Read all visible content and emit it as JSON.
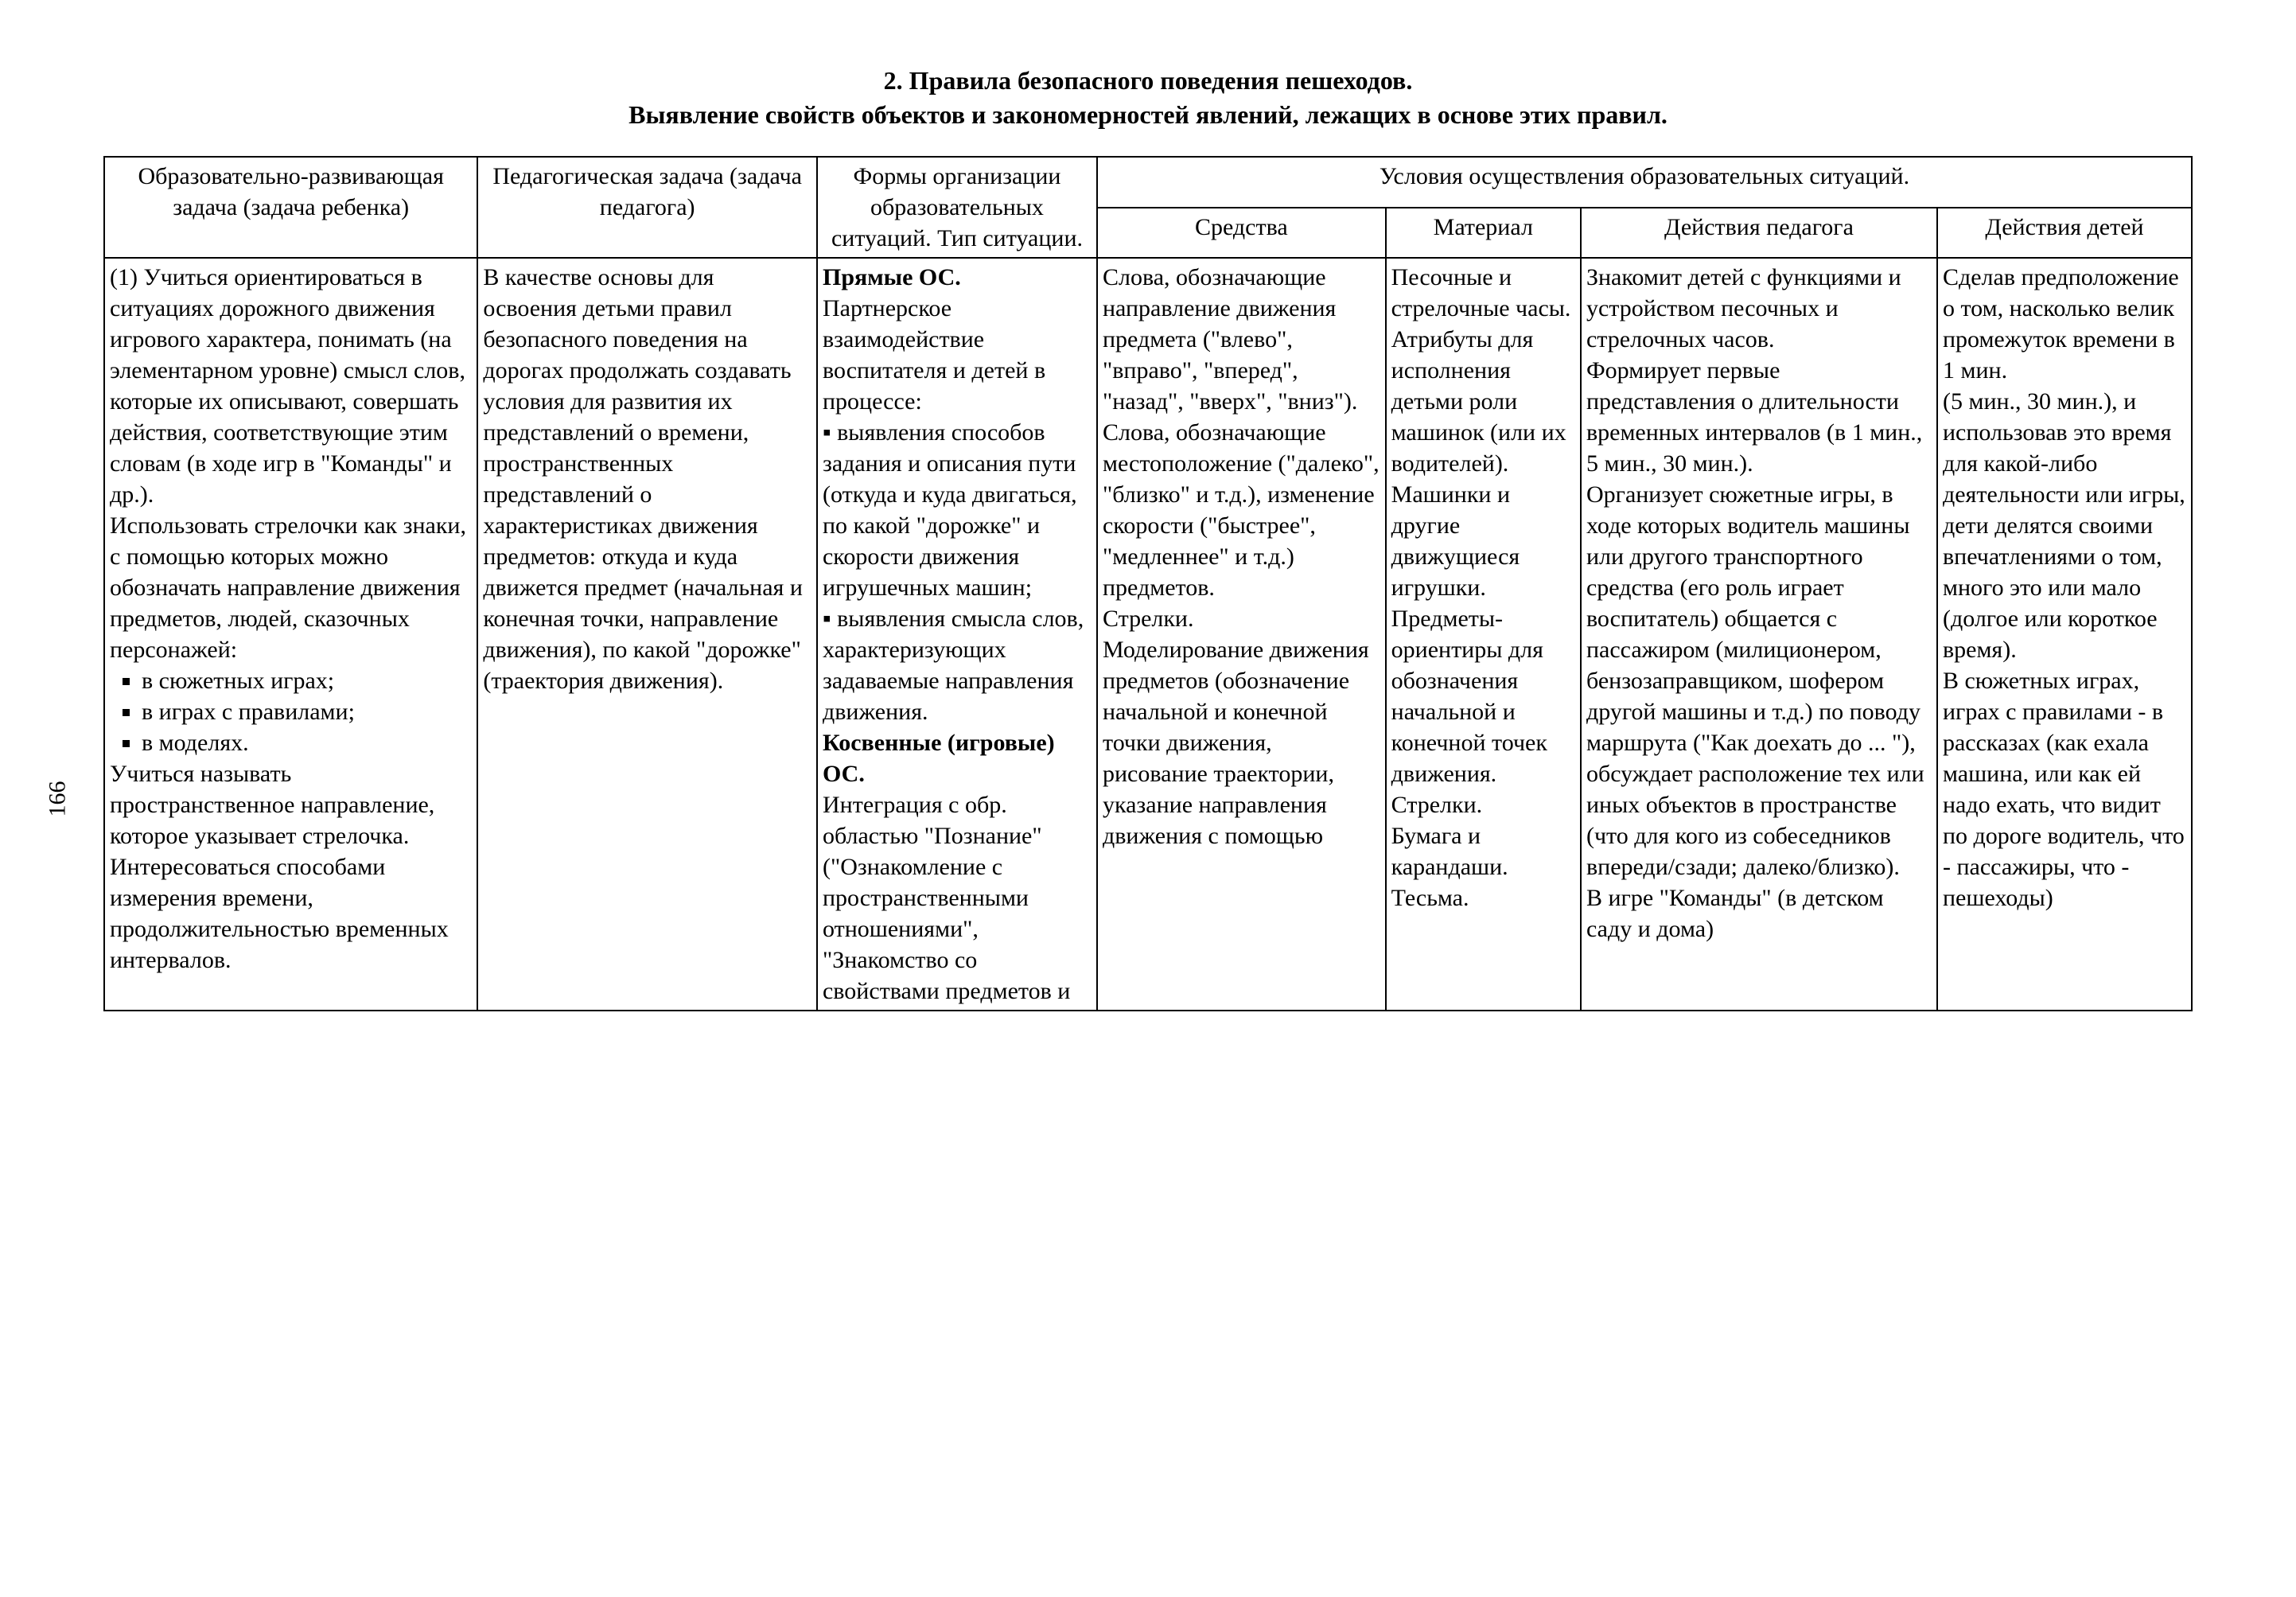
{
  "page_number": "166",
  "title": "2. Правила  безопасного поведения пешеходов.\nВыявление свойств объектов и закономерностей явлений, лежащих в основе этих правил.",
  "columns": {
    "c1_width": 440,
    "c2_width": 400,
    "c3_width": 330,
    "c4_width": 340,
    "c5_width": 230,
    "c6_width": 420,
    "c7_width": 300
  },
  "headers": {
    "h1": "Образовательно-развивающая задача (задача ребенка)",
    "h2": "Педагогическая задача (задача педагога)",
    "h3": "Формы организации образовательных ситуаций. Тип ситуации.",
    "h4_top": "Условия осуществления образовательных ситуаций.",
    "h4a": "Средства",
    "h4b": "Материал",
    "h4c": "Действия педагога",
    "h4d": "Действия детей"
  },
  "row": {
    "c1_pre": "(1)   Учиться ориентироваться в ситуациях дорожного движения игрового характера, понимать (на элементарном уровне) смысл слов, которые их описывают, совершать действия, соответствующие этим словам (в ходе игр в \"Команды\" и др.).\n   Использовать стрелочки как знаки, с помощью которых можно обозначать направление движения предметов, людей, сказочных персонажей:",
    "c1_list": [
      "в сюжетных играх;",
      "в играх с правилами;",
      "в моделях."
    ],
    "c1_post": "   Учиться называть пространственное направление, которое указывает стрелочка.\n   Интересоваться способами измерения времени, продолжительностью временных интервалов.",
    "c2": "   В качестве основы для освоения детьми правил безопасного поведения на дорогах продолжать создавать условия для  развития их представлений о времени, пространственных представлений  о характеристиках движения предметов: откуда и куда движется предмет (начальная и конечная точки, направление движения),  по какой \"дорожке\" (траектория движения).",
    "c3_bold1": "Прямые ОС.",
    "c3_after_bold1": "Партнерское взаимодействие воспитателя и детей в процессе:\n▪ выявления способов задания и описания пути (откуда и куда двигаться, по какой  \"дорожке\" и скорости движения игрушечных машин;\n▪ выявления смысла слов, характеризующих задаваемые направления движения.",
    "c3_bold2": "Косвенные (игровые)  ОС.",
    "c3_after_bold2": "Интеграция с обр. областью \"Познание\" (\"Ознакомление с пространственными отношениями\", \"Знакомство со свойствами предметов и",
    "c4": "   Слова, обозначающие направление движения предмета (\"влево\", \"вправо\", \"вперед\", \"назад\", \"вверх\", \"вниз\").\n   Слова, обозначающие местоположение (\"далеко\", \"близко\" и т.д.), изменение скорости (\"быстрее\", \"медленнее\" и т.д.) предметов.\n   Стрелки.\n   Моделирование движения предметов (обозначение начальной и конечной точки движения, рисование траектории, указание направления движения с помощью",
    "c5": "   Песочные и стрелочные часы.\n   Атрибуты для исполнения детьми роли машинок (или их водителей).\n   Машинки и другие движущиеся игрушки.\n   Предметы-ориентиры для обозначения начальной и конечной точек движения.\n   Стрелки.\n   Бумага и карандаши.\n   Тесьма.",
    "c6": "   Знакомит детей с функциями и устройством песочных и стрелочных часов.\n   Формирует первые представления о длительности временных интервалов (в 1 мин., 5 мин., 30 мин.).\n   Организует сюжетные игры, в ходе которых водитель машины или другого транспортного средства (его роль играет воспитатель) общается  с пассажиром (милиционером, бензозаправщиком, шофером другой машины и т.д.) по поводу маршрута (\"Как доехать до ... \"), обсуждает расположение тех или иных объектов в пространстве (что для кого из собеседников впереди/сзади; далеко/близко).\n   В игре  \"Команды\"  (в детском саду и дома)",
    "c7": "   Сделав предположение о том, насколько велик промежуток времени в 1 мин.\n(5 мин., 30 мин.), и использовав это время для какой-либо деятельности или игры, дети делятся своими впечатлениями о том, много это или мало (долгое или короткое время).\n   В сюжетных играх, играх с правилами - в рассказах (как ехала машина, или как ей надо ехать,  что видит по дороге водитель, что - пассажиры, что - пешеходы)"
  }
}
